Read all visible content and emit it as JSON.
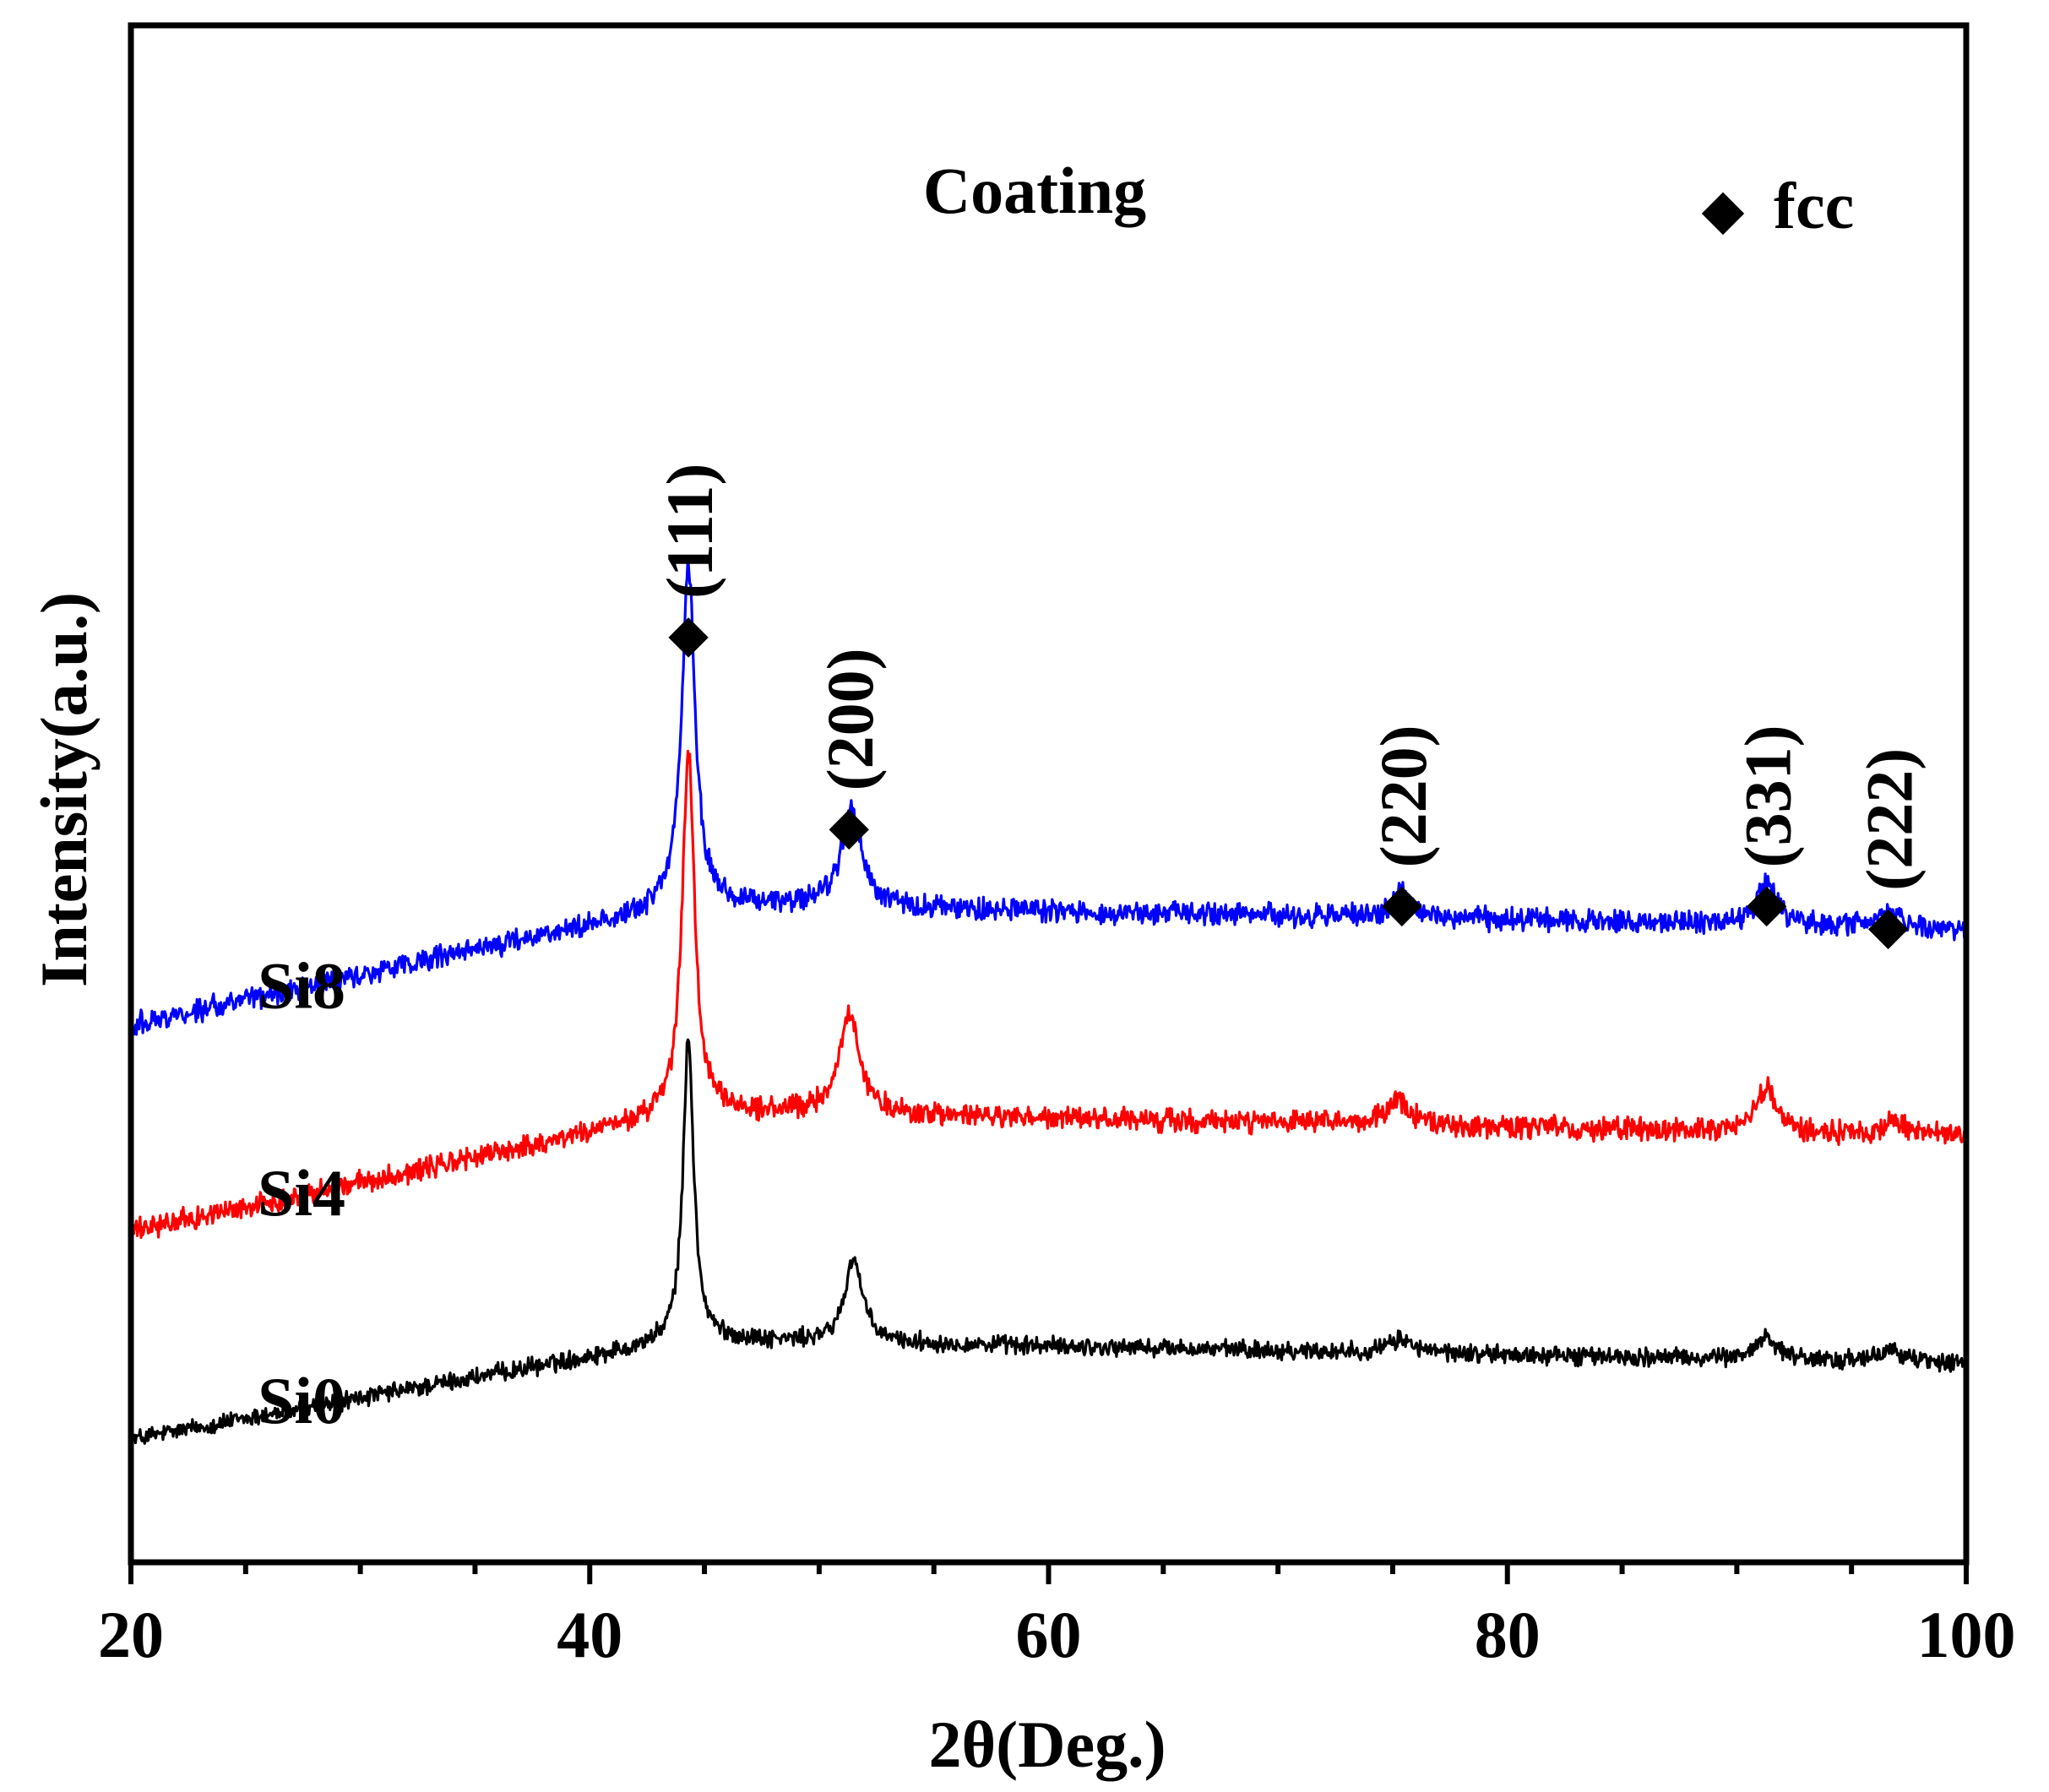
{
  "chart_data": {
    "type": "line",
    "title": "Coating",
    "xlabel": "2θ(Deg.)",
    "ylabel": "Intensity(a.u.)",
    "xlim": [
      20,
      100
    ],
    "xticks": [
      20,
      40,
      60,
      80,
      100
    ],
    "xtick_labels": [
      "20",
      "40",
      "60",
      "80",
      "100"
    ],
    "ylim": [
      0,
      100
    ],
    "legend": {
      "marker": "◆",
      "label": "fcc",
      "position": "top-right"
    },
    "series": [
      {
        "name": "Si0",
        "label": "Si0",
        "color": "#000000",
        "offset": 0,
        "base_start": 8,
        "base_plateau": 14.5,
        "noise": 0.9,
        "peaks": [
          {
            "center": 44.3,
            "height": 19.5,
            "width": 0.28
          },
          {
            "center": 51.5,
            "height": 5.5,
            "width": 0.45
          },
          {
            "center": 75.4,
            "height": 0.9,
            "width": 0.6
          },
          {
            "center": 91.3,
            "height": 1.6,
            "width": 0.5
          },
          {
            "center": 96.8,
            "height": 0.8,
            "width": 0.6
          }
        ]
      },
      {
        "name": "Si4",
        "label": "Si4",
        "color": "#ff0000",
        "offset": 13.5,
        "base_start": 8,
        "base_plateau": 15.8,
        "noise": 1.1,
        "peaks": [
          {
            "center": 44.3,
            "height": 23.5,
            "width": 0.32
          },
          {
            "center": 51.3,
            "height": 6.5,
            "width": 0.55
          },
          {
            "center": 75.2,
            "height": 1.6,
            "width": 0.6
          },
          {
            "center": 91.3,
            "height": 2.8,
            "width": 0.55
          },
          {
            "center": 96.8,
            "height": 0.8,
            "width": 0.6
          }
        ]
      },
      {
        "name": "Si8",
        "label": "Si8",
        "color": "#0000ff",
        "offset": 27,
        "base_start": 8,
        "base_plateau": 15.8,
        "noise": 1.1,
        "peaks": [
          {
            "center": 44.3,
            "height": 22.0,
            "width": 0.35
          },
          {
            "center": 51.4,
            "height": 6.2,
            "width": 0.55
          },
          {
            "center": 75.4,
            "height": 1.6,
            "width": 0.5
          },
          {
            "center": 91.3,
            "height": 2.8,
            "width": 0.5
          },
          {
            "center": 96.8,
            "height": 1.0,
            "width": 0.6
          }
        ]
      }
    ],
    "annotations": [
      {
        "label": "(111)",
        "x": 44.3,
        "y": 60.5
      },
      {
        "label": "(200)",
        "x": 51.3,
        "y": 48.0
      },
      {
        "label": "(220)",
        "x": 75.4,
        "y": 43.0
      },
      {
        "label": "(331)",
        "x": 91.3,
        "y": 43.0
      },
      {
        "label": "(222)",
        "x": 96.6,
        "y": 41.5
      }
    ]
  }
}
